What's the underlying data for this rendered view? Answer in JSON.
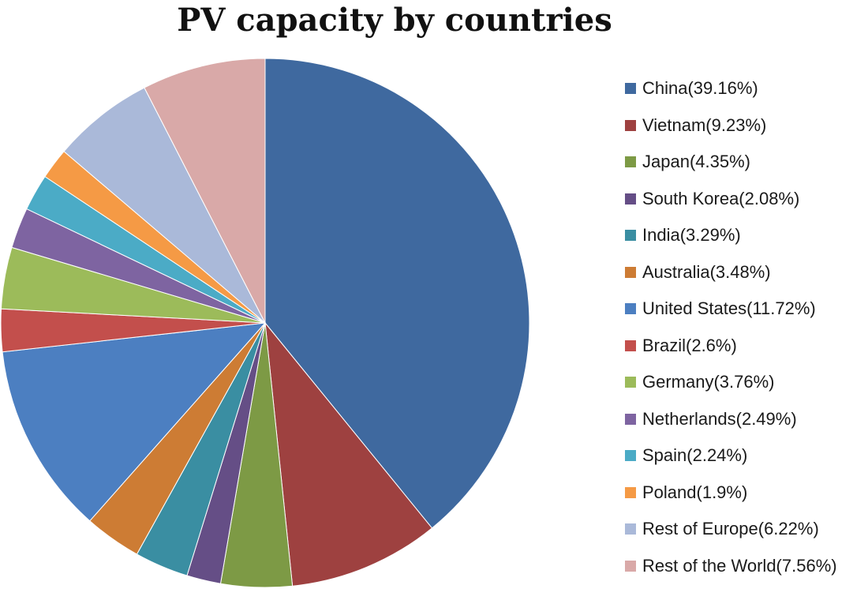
{
  "chart_data": {
    "type": "pie",
    "title": "PV capacity by countries",
    "legend_position": "right",
    "start_angle_deg": 0,
    "direction": "clockwise",
    "slices": [
      {
        "name": "China(39.16%)",
        "value": 39.16,
        "color": "#3f699f"
      },
      {
        "name": "Vietnam(9.23%)",
        "value": 9.23,
        "color": "#9e4140"
      },
      {
        "name": "Japan(4.35%)",
        "value": 4.35,
        "color": "#7d9a45"
      },
      {
        "name": "South Korea(2.08%)",
        "value": 2.08,
        "color": "#654e86"
      },
      {
        "name": "India(3.29%)",
        "value": 3.29,
        "color": "#3a8ea2"
      },
      {
        "name": "Australia(3.48%)",
        "value": 3.48,
        "color": "#cd7c34"
      },
      {
        "name": "United States(11.72%)",
        "value": 11.72,
        "color": "#4c7fc1"
      },
      {
        "name": "Brazil(2.6%)",
        "value": 2.6,
        "color": "#c34f4c"
      },
      {
        "name": "Germany(3.76%)",
        "value": 3.76,
        "color": "#9cbb5a"
      },
      {
        "name": "Netherlands(2.49%)",
        "value": 2.49,
        "color": "#7e64a1"
      },
      {
        "name": "Spain(2.24%)",
        "value": 2.24,
        "color": "#4babc6"
      },
      {
        "name": "Poland(1.9%)",
        "value": 1.9,
        "color": "#f59a45"
      },
      {
        "name": "Rest of Europe(6.22%)",
        "value": 6.22,
        "color": "#aab9d9"
      },
      {
        "name": "Rest of the World(7.56%)",
        "value": 7.56,
        "color": "#d9a9a8"
      }
    ]
  }
}
